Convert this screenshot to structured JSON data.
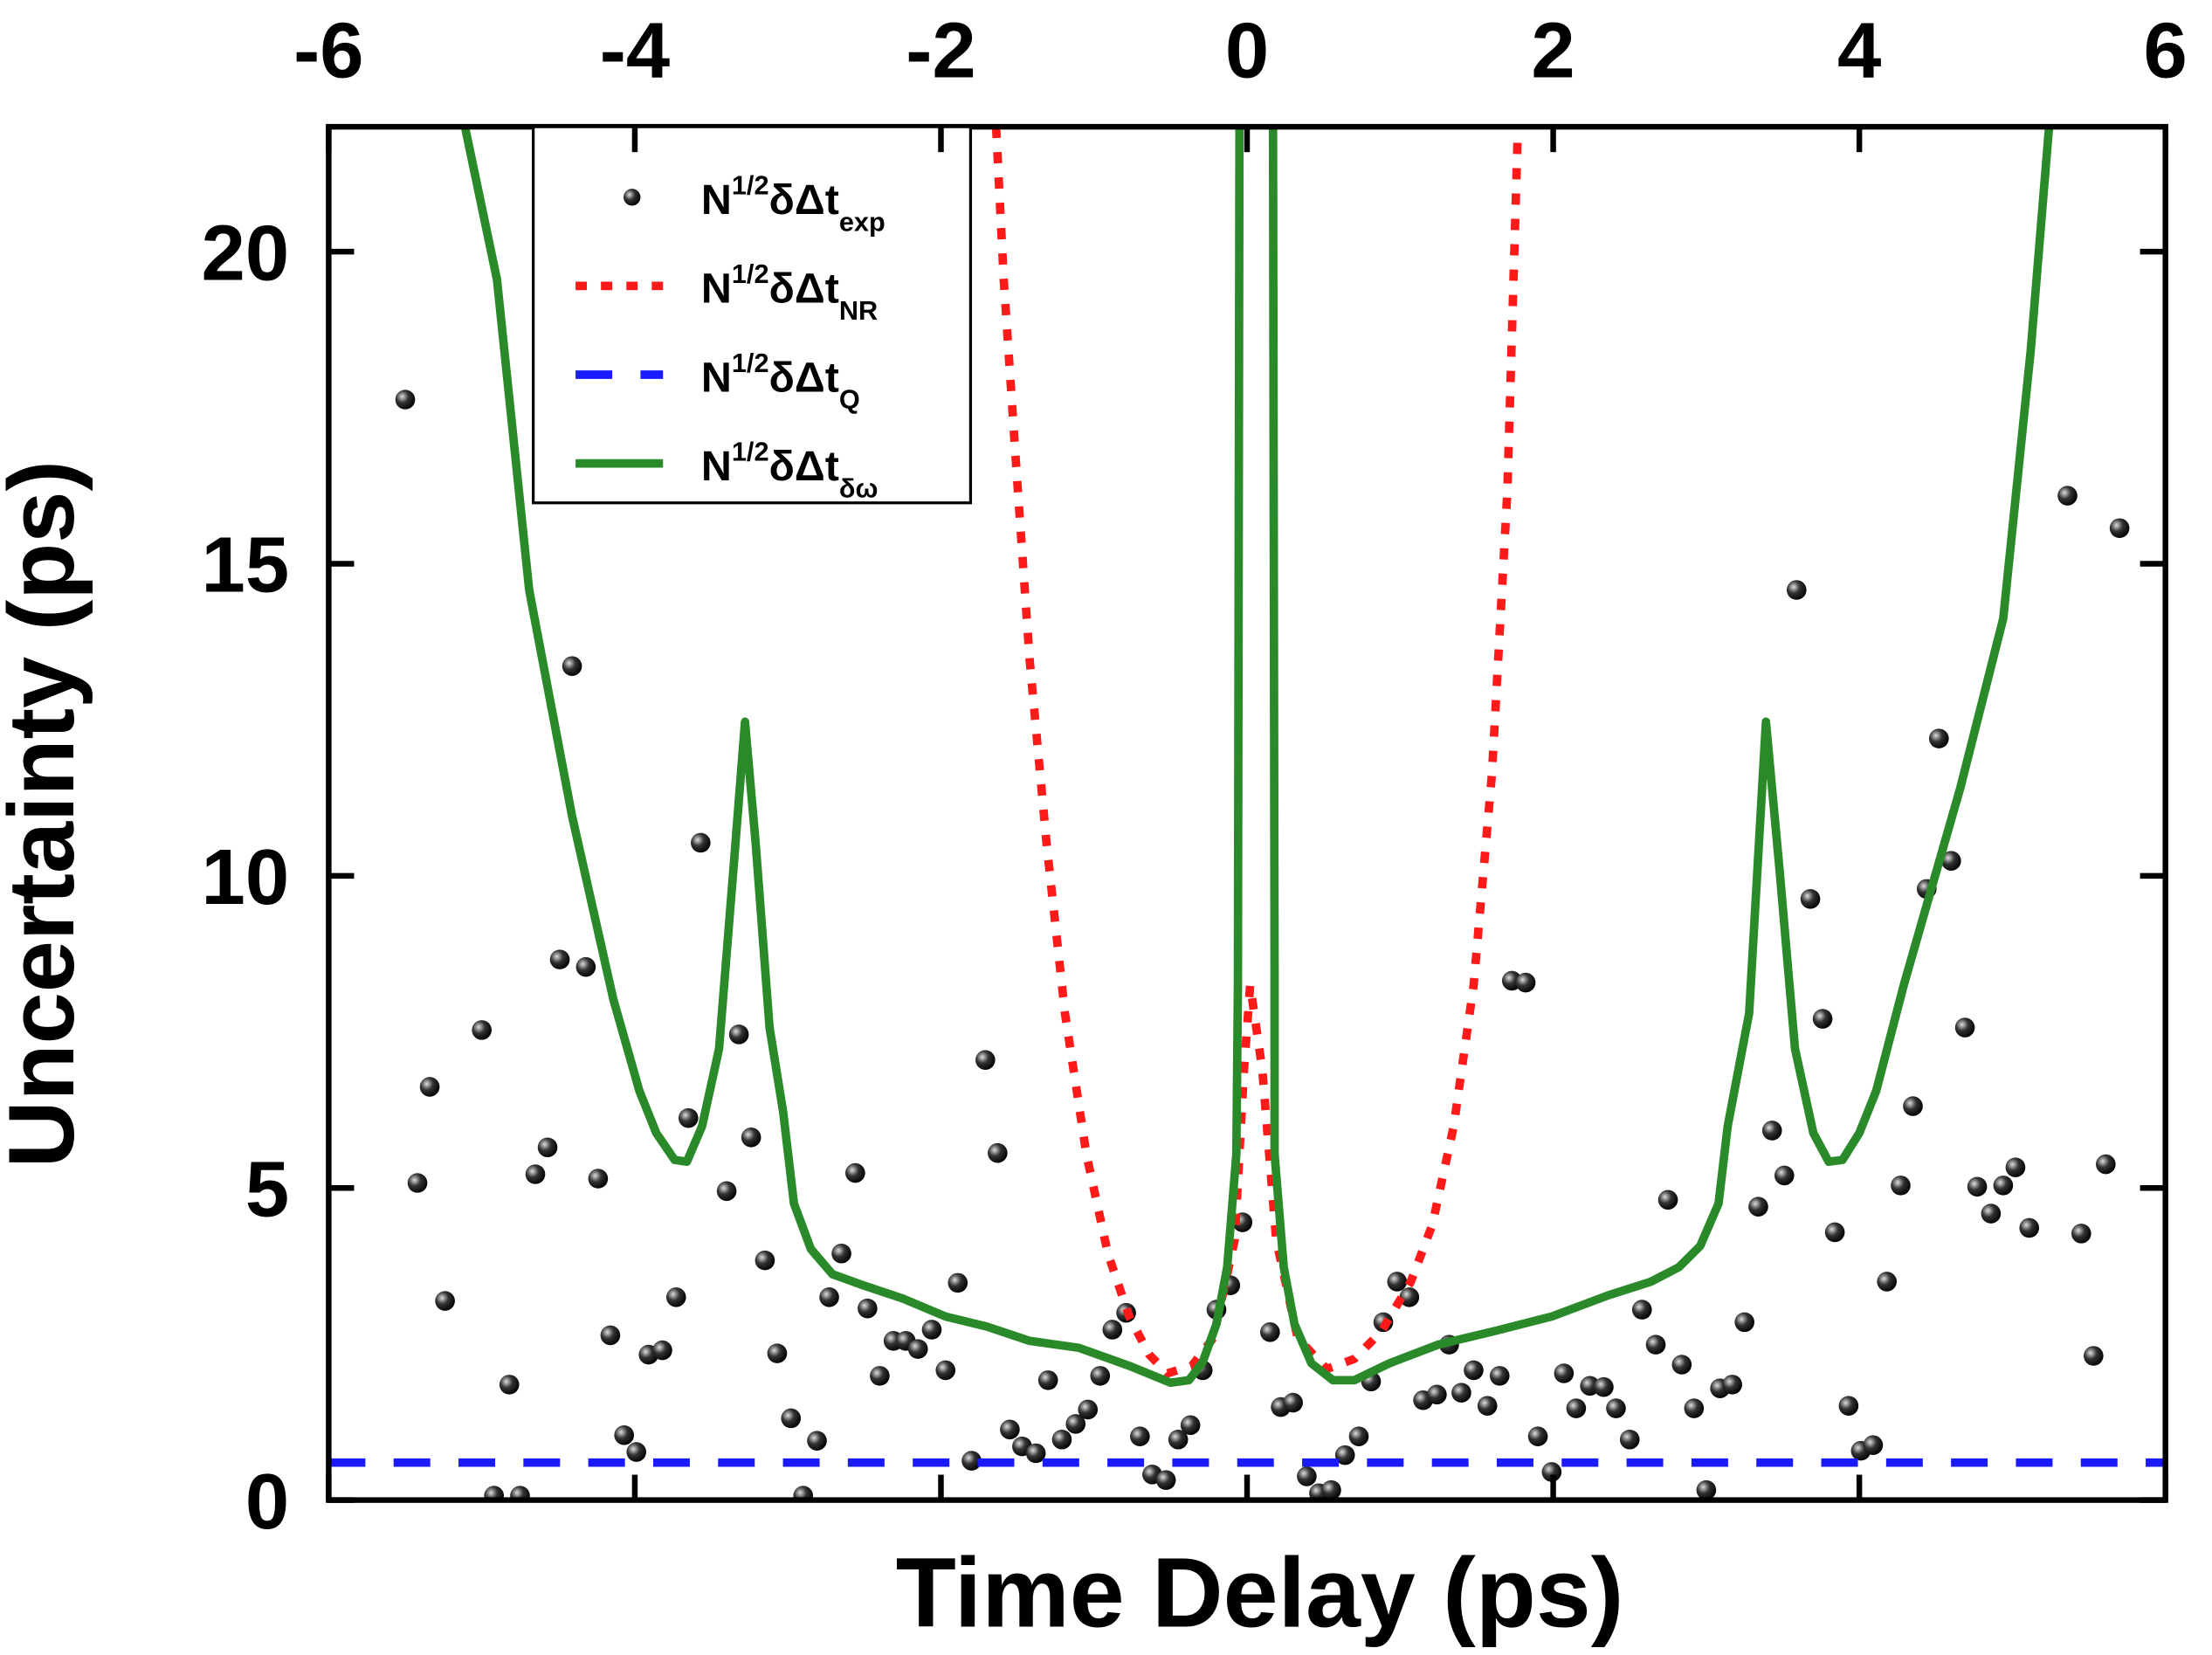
{
  "chart_data": {
    "type": "line",
    "xlabel": "Time Delay (ps)",
    "ylabel": "Uncertainty (ps)",
    "xlim": [
      -6,
      6
    ],
    "xticks": [
      -6,
      -4,
      -2,
      0,
      2,
      4,
      6
    ],
    "ylim": [
      0,
      22
    ],
    "yticks": [
      0,
      5,
      10,
      15,
      20
    ],
    "legend": "upper left",
    "series": [
      {
        "name": [
          "N",
          "1/2",
          "δΔt",
          "exp"
        ],
        "style": "points",
        "color": "#000000",
        "x": [
          -5.5,
          -5.42,
          -5.34,
          -5.24,
          -5.0,
          -4.92,
          -4.82,
          -4.75,
          -4.65,
          -4.57,
          -4.49,
          -4.41,
          -4.32,
          -4.24,
          -4.16,
          -4.07,
          -3.99,
          -3.91,
          -3.82,
          -3.73,
          -3.65,
          -3.57,
          -3.4,
          -3.32,
          -3.24,
          -3.15,
          -3.07,
          -2.98,
          -2.9,
          -2.81,
          -2.73,
          -2.65,
          -2.56,
          -2.48,
          -2.4,
          -2.31,
          -2.23,
          -2.15,
          -2.06,
          -1.97,
          -1.89,
          -1.8,
          -1.71,
          -1.63,
          -1.55,
          -1.47,
          -1.38,
          -1.3,
          -1.21,
          -1.12,
          -1.04,
          -0.96,
          -0.88,
          -0.79,
          -0.7,
          -0.62,
          -0.53,
          -0.45,
          -0.37,
          -0.29,
          -0.2,
          -0.11,
          -0.03,
          0.15,
          0.22,
          0.3,
          0.39,
          0.47,
          0.55,
          0.64,
          0.73,
          0.81,
          0.89,
          0.98,
          1.06,
          1.15,
          1.24,
          1.32,
          1.4,
          1.48,
          1.57,
          1.65,
          1.73,
          1.82,
          1.9,
          1.99,
          2.07,
          2.15,
          2.24,
          2.33,
          2.41,
          2.5,
          2.58,
          2.67,
          2.75,
          2.84,
          2.92,
          3.0,
          3.09,
          3.17,
          3.25,
          3.34,
          3.43,
          3.51,
          3.59,
          3.68,
          3.76,
          3.84,
          3.93,
          4.01,
          4.09,
          4.18,
          4.27,
          4.35,
          4.44,
          4.52,
          4.6,
          4.69,
          4.77,
          4.86,
          4.94,
          5.02,
          5.11,
          5.36,
          5.45,
          5.53,
          5.61,
          5.7
        ],
        "values": [
          17.63,
          5.08,
          6.62,
          3.19,
          7.53,
          0.07,
          1.85,
          0.07,
          5.22,
          5.65,
          8.66,
          13.36,
          8.54,
          5.15,
          2.64,
          1.04,
          0.77,
          2.33,
          2.4,
          3.25,
          6.12,
          10.53,
          4.95,
          7.46,
          5.81,
          3.84,
          2.35,
          1.31,
          0.07,
          0.95,
          3.25,
          3.95,
          5.24,
          3.07,
          1.99,
          2.55,
          2.55,
          2.42,
          2.73,
          2.08,
          3.48,
          0.63,
          7.05,
          5.56,
          1.13,
          0.86,
          0.75,
          1.92,
          0.97,
          1.22,
          1.45,
          1.99,
          2.73,
          3.0,
          1.02,
          0.41,
          0.32,
          0.97,
          1.2,
          2.08,
          3.05,
          3.44,
          4.45,
          2.69,
          1.49,
          1.56,
          0.38,
          0.11,
          0.16,
          0.72,
          1.02,
          1.9,
          2.85,
          3.5,
          3.25,
          1.6,
          1.69,
          2.49,
          1.72,
          2.08,
          1.51,
          1.99,
          8.32,
          8.29,
          1.02,
          0.45,
          2.03,
          1.47,
          1.83,
          1.81,
          1.47,
          0.97,
          3.05,
          2.49,
          4.81,
          2.17,
          1.47,
          0.16,
          1.79,
          1.85,
          2.85,
          4.7,
          5.92,
          5.2,
          14.58,
          9.63,
          7.71,
          4.29,
          1.51,
          0.79,
          0.88,
          3.5,
          5.04,
          6.31,
          9.79,
          12.2,
          10.24,
          7.57,
          5.02,
          4.59,
          5.04,
          5.33,
          4.36,
          16.09,
          4.27,
          2.31,
          5.38,
          15.57
        ]
      },
      {
        "name": [
          "N",
          "1/2",
          "δΔt",
          "NR"
        ],
        "style": "dotted",
        "color": "#ff1a1a",
        "x": [
          -1.64,
          -1.59,
          -1.51,
          -1.42,
          -1.31,
          -1.19,
          -1.05,
          -0.91,
          -0.77,
          -0.64,
          -0.52,
          -0.36,
          -0.22,
          -0.08,
          -0.02,
          0.02,
          0.1,
          0.19,
          0.33,
          0.52,
          0.7,
          0.88,
          1.07,
          1.21,
          1.35,
          1.48,
          1.6,
          1.7,
          1.77
        ],
        "values": [
          22,
          19.55,
          16.61,
          13.45,
          10.51,
          7.8,
          5.54,
          3.95,
          2.94,
          2.33,
          2.03,
          2.15,
          2.6,
          4.18,
          6.89,
          8.25,
          6.89,
          4.18,
          2.6,
          2.1,
          2.26,
          2.71,
          3.5,
          4.41,
          5.99,
          8.25,
          11.64,
          16.16,
          22
        ]
      },
      {
        "name": [
          "N",
          "1/2",
          "δΔt",
          "Q"
        ],
        "style": "dashed",
        "color": "#1a1aff",
        "x": [
          -6,
          6
        ],
        "values": [
          0.6,
          0.6
        ]
      },
      {
        "name": [
          "N",
          "1/2",
          "δΔt",
          "δω"
        ],
        "style": "solid",
        "color": "#2a8a2a",
        "x": [
          -5.11,
          -4.9,
          -4.69,
          -4.41,
          -4.14,
          -3.97,
          -3.86,
          -3.74,
          -3.66,
          -3.56,
          -3.45,
          -3.35,
          -3.28,
          -3.21,
          -3.12,
          -3.03,
          -2.96,
          -2.85,
          -2.71,
          -2.53,
          -2.25,
          -1.97,
          -1.7,
          -1.42,
          -1.1,
          -0.77,
          -0.5,
          -0.38,
          -0.29,
          -0.2,
          -0.13,
          -0.07,
          -0.06,
          -0.05,
          null,
          0.17,
          0.18,
          0.18,
          0.24,
          0.31,
          0.42,
          0.56,
          0.7,
          0.93,
          1.25,
          1.62,
          1.99,
          2.36,
          2.64,
          2.82,
          2.96,
          3.08,
          3.14,
          3.28,
          3.39,
          3.48,
          3.58,
          3.7,
          3.8,
          3.89,
          4.0,
          4.11,
          4.29,
          4.66,
          4.94,
          5.12,
          5.24
        ],
        "values": [
          22,
          19.55,
          14.58,
          10.96,
          8.02,
          6.55,
          5.88,
          5.45,
          5.42,
          5.99,
          7.23,
          10.28,
          12.47,
          10.51,
          7.57,
          6.21,
          4.75,
          4.02,
          3.62,
          3.46,
          3.23,
          2.94,
          2.78,
          2.55,
          2.44,
          2.15,
          1.88,
          1.92,
          2.21,
          2.82,
          3.73,
          5.54,
          8.25,
          22,
          null,
          22,
          8.25,
          5.54,
          3.73,
          2.82,
          2.19,
          1.92,
          1.92,
          2.19,
          2.49,
          2.71,
          2.94,
          3.28,
          3.5,
          3.73,
          4.07,
          4.75,
          5.99,
          7.8,
          12.47,
          10.06,
          7.23,
          5.88,
          5.42,
          5.45,
          5.88,
          6.55,
          8.25,
          11.41,
          14.12,
          18.42,
          22
        ]
      }
    ]
  }
}
